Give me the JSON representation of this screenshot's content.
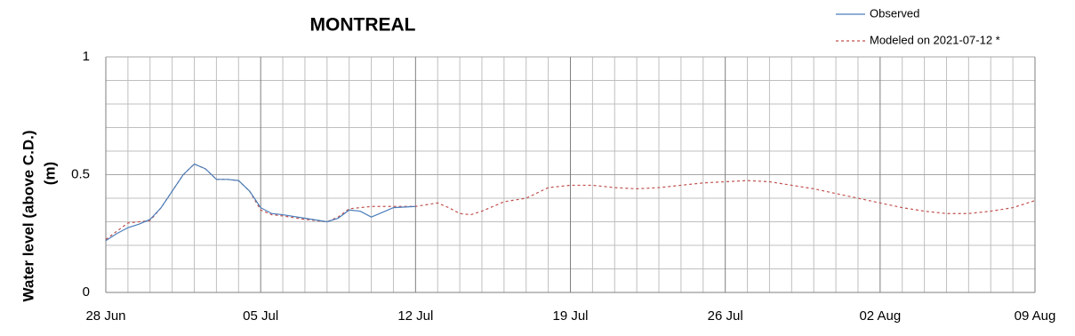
{
  "chart_data": {
    "type": "line",
    "title": "MONTREAL",
    "y_label": [
      "Water level (above C.D.)",
      "(m)"
    ],
    "xlim": [
      0,
      42
    ],
    "xticks": [
      {
        "value": 0,
        "label": "28 Jun"
      },
      {
        "value": 7,
        "label": "05 Jul"
      },
      {
        "value": 14,
        "label": "12 Jul"
      },
      {
        "value": 21,
        "label": "19 Jul"
      },
      {
        "value": 28,
        "label": "26 Jul"
      },
      {
        "value": 35,
        "label": "02 Aug"
      },
      {
        "value": 42,
        "label": "09 Aug"
      }
    ],
    "xminorticks": [
      1,
      2,
      3,
      4,
      5,
      6,
      8,
      9,
      10,
      11,
      12,
      13,
      15,
      16,
      17,
      18,
      19,
      20,
      22,
      23,
      24,
      25,
      26,
      27,
      29,
      30,
      31,
      32,
      33,
      34,
      36,
      37,
      38,
      39,
      40,
      41
    ],
    "ylim": [
      0,
      1
    ],
    "yticks": [
      0,
      0.5,
      1
    ],
    "yminorticks": [
      0.1,
      0.2,
      0.3,
      0.4,
      0.6,
      0.7,
      0.8,
      0.9
    ],
    "grid": true,
    "series": [
      {
        "name": "Observed",
        "color": "#4a7ebb",
        "dashed": false,
        "x": [
          0,
          0.5,
          1,
          1.5,
          2,
          2.5,
          3,
          3.5,
          4,
          4.5,
          5,
          5.5,
          6,
          6.5,
          7,
          7.5,
          8,
          9,
          10,
          10.5,
          11,
          11.5,
          12,
          12.5,
          13,
          14
        ],
        "values": [
          0.22,
          0.25,
          0.275,
          0.29,
          0.31,
          0.36,
          0.43,
          0.5,
          0.545,
          0.525,
          0.48,
          0.48,
          0.475,
          0.43,
          0.36,
          0.335,
          0.33,
          0.315,
          0.3,
          0.315,
          0.35,
          0.345,
          0.32,
          0.34,
          0.36,
          0.365
        ]
      },
      {
        "name": "Modeled on 2021-07-12 *",
        "color": "#c0504d",
        "dashed": true,
        "x": [
          0,
          0.5,
          1,
          1.5,
          2,
          2.5,
          3,
          3.5,
          4,
          4.5,
          5,
          5.5,
          6,
          6.5,
          7,
          7.5,
          8,
          9,
          10,
          10.5,
          11,
          12,
          13,
          14,
          15,
          15.5,
          16,
          16.5,
          17,
          18,
          19,
          20,
          21,
          22,
          23,
          24,
          25,
          26,
          27,
          28,
          29,
          30,
          31,
          32,
          33,
          34,
          35,
          36,
          37,
          38,
          39,
          40,
          41,
          42
        ],
        "values": [
          0.225,
          0.26,
          0.295,
          0.3,
          0.305,
          0.36,
          0.43,
          0.5,
          0.545,
          0.525,
          0.48,
          0.48,
          0.475,
          0.43,
          0.35,
          0.33,
          0.325,
          0.31,
          0.3,
          0.32,
          0.355,
          0.365,
          0.365,
          0.365,
          0.38,
          0.36,
          0.335,
          0.33,
          0.345,
          0.385,
          0.4,
          0.445,
          0.455,
          0.455,
          0.445,
          0.44,
          0.445,
          0.455,
          0.465,
          0.47,
          0.475,
          0.47,
          0.455,
          0.44,
          0.42,
          0.4,
          0.38,
          0.36,
          0.345,
          0.335,
          0.335,
          0.345,
          0.36,
          0.39
        ]
      }
    ]
  }
}
